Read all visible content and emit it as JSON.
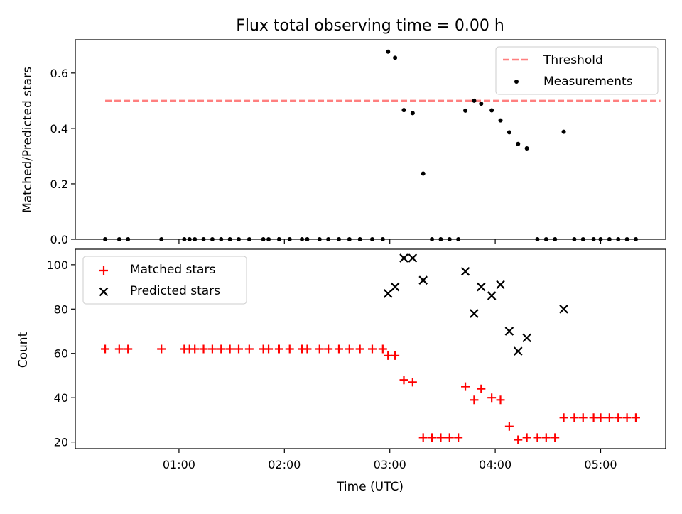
{
  "chart_data": [
    {
      "type": "scatter",
      "title": "Flux total observing time = 0.00 h",
      "xlabel": "",
      "ylabel": "Matched/Predicted stars",
      "ylim": [
        0,
        0.72
      ],
      "xlim": [
        "00:01",
        "05:37"
      ],
      "yticks": [
        "0.0",
        "0.2",
        "0.4",
        "0.6"
      ],
      "legend": {
        "placement": "top-right",
        "entries": [
          "Threshold",
          "Measurements"
        ]
      },
      "series": [
        {
          "name": "Threshold",
          "kind": "line",
          "style": "dashed",
          "color": "#ff7f7f",
          "x": [
            "00:18",
            "05:34"
          ],
          "y": [
            0.5,
            0.5
          ]
        },
        {
          "name": "Measurements",
          "kind": "scatter",
          "color": "#000000",
          "x": [
            "00:18",
            "00:26",
            "00:31",
            "00:50",
            "01:03",
            "01:06",
            "01:09",
            "01:14",
            "01:19",
            "01:24",
            "01:29",
            "01:34",
            "01:40",
            "01:48",
            "01:51",
            "01:57",
            "02:03",
            "02:10",
            "02:13",
            "02:20",
            "02:25",
            "02:31",
            "02:37",
            "02:43",
            "02:50",
            "02:56",
            "02:59",
            "03:03",
            "03:08",
            "03:13",
            "03:19",
            "03:24",
            "03:29",
            "03:34",
            "03:39",
            "03:43",
            "03:48",
            "03:52",
            "03:58",
            "04:03",
            "04:08",
            "04:13",
            "04:18",
            "04:24",
            "04:29",
            "04:34",
            "04:39",
            "04:45",
            "04:50",
            "04:56",
            "05:00",
            "05:05",
            "05:10",
            "05:15",
            "05:20"
          ],
          "y": [
            0.0,
            0.0,
            0.0,
            0.0,
            0.0,
            0.0,
            0.0,
            0.0,
            0.0,
            0.0,
            0.0,
            0.0,
            0.0,
            0.0,
            0.0,
            0.0,
            0.0,
            0.0,
            0.0,
            0.0,
            0.0,
            0.0,
            0.0,
            0.0,
            0.0,
            0.0,
            0.677,
            0.655,
            0.466,
            0.455,
            0.237,
            0.0,
            0.0,
            0.0,
            0.0,
            0.464,
            0.5,
            0.489,
            0.465,
            0.429,
            0.386,
            0.344,
            0.328,
            0.0,
            0.0,
            0.0,
            0.388,
            0.0,
            0.0,
            0.0,
            0.0,
            0.0,
            0.0,
            0.0,
            0.0
          ]
        }
      ]
    },
    {
      "type": "scatter",
      "title": "",
      "xlabel": "Time (UTC)",
      "ylabel": "Count",
      "ylim": [
        17,
        107
      ],
      "xlim": [
        "00:01",
        "05:37"
      ],
      "yticks": [
        "20",
        "40",
        "60",
        "80",
        "100"
      ],
      "xticks": [
        "01:00",
        "02:00",
        "03:00",
        "04:00",
        "05:00"
      ],
      "legend": {
        "placement": "top-left",
        "entries": [
          "Matched stars",
          "Predicted stars"
        ]
      },
      "series": [
        {
          "name": "Matched stars",
          "marker": "plus",
          "color": "#ff0000",
          "x": [
            "00:18",
            "00:26",
            "00:31",
            "00:50",
            "01:03",
            "01:06",
            "01:09",
            "01:14",
            "01:19",
            "01:24",
            "01:29",
            "01:34",
            "01:40",
            "01:48",
            "01:51",
            "01:57",
            "02:03",
            "02:10",
            "02:13",
            "02:20",
            "02:25",
            "02:31",
            "02:37",
            "02:43",
            "02:50",
            "02:56",
            "02:59",
            "03:03",
            "03:08",
            "03:13",
            "03:19",
            "03:24",
            "03:29",
            "03:34",
            "03:39",
            "03:43",
            "03:48",
            "03:52",
            "03:58",
            "04:03",
            "04:08",
            "04:13",
            "04:18",
            "04:24",
            "04:29",
            "04:34",
            "04:39",
            "04:45",
            "04:50",
            "04:56",
            "05:00",
            "05:05",
            "05:10",
            "05:15",
            "05:20"
          ],
          "y": [
            62,
            62,
            62,
            62,
            62,
            62,
            62,
            62,
            62,
            62,
            62,
            62,
            62,
            62,
            62,
            62,
            62,
            62,
            62,
            62,
            62,
            62,
            62,
            62,
            62,
            62,
            59,
            59,
            48,
            47,
            22,
            22,
            22,
            22,
            22,
            45,
            39,
            44,
            40,
            39,
            27,
            21,
            22,
            22,
            22,
            22,
            31,
            31,
            31,
            31,
            31,
            31,
            31,
            31,
            31
          ]
        },
        {
          "name": "Predicted stars",
          "marker": "x",
          "color": "#000000",
          "x": [
            "02:59",
            "03:03",
            "03:08",
            "03:13",
            "03:19",
            "03:43",
            "03:48",
            "03:52",
            "03:58",
            "04:03",
            "04:08",
            "04:13",
            "04:18",
            "04:39"
          ],
          "y": [
            87,
            90,
            103,
            103,
            93,
            97,
            78,
            90,
            86,
            91,
            70,
            61,
            67,
            80
          ]
        }
      ]
    }
  ]
}
